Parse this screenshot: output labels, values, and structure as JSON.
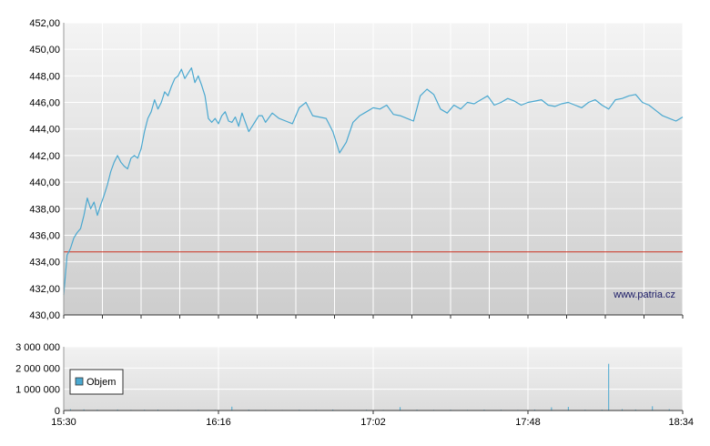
{
  "chart_data": [
    {
      "type": "line",
      "title": "",
      "xlabel": "",
      "ylabel": "",
      "ylim": [
        430,
        452
      ],
      "y_ticks": [
        "452,00",
        "450,00",
        "448,00",
        "446,00",
        "444,00",
        "442,00",
        "440,00",
        "438,00",
        "436,00",
        "434,00",
        "432,00",
        "430,00"
      ],
      "y_tick_values": [
        452,
        450,
        448,
        446,
        444,
        442,
        440,
        438,
        436,
        434,
        432,
        430
      ],
      "x_ticks": [
        "15:30",
        "16:16",
        "17:02",
        "17:48",
        "18:34"
      ],
      "x_range_minutes": [
        0,
        184
      ],
      "grid": true,
      "reference_line": {
        "value": 434.75,
        "color": "#cc3322"
      },
      "series": [
        {
          "color": "#4aa8d0",
          "x": [
            0,
            1,
            2,
            3,
            4,
            5,
            6,
            7,
            8,
            9,
            10,
            11,
            12,
            13,
            14,
            15,
            16,
            17,
            18,
            19,
            20,
            21,
            22,
            23,
            24,
            25,
            26,
            27,
            28,
            29,
            30,
            31,
            32,
            33,
            34,
            35,
            36,
            37,
            38,
            39,
            40,
            41,
            42,
            43,
            44,
            45,
            46,
            47,
            48,
            49,
            50,
            51,
            52,
            53,
            54,
            55,
            56,
            57,
            58,
            59,
            60,
            62,
            64,
            66,
            68,
            70,
            72,
            74,
            76,
            78,
            80,
            82,
            84,
            86,
            88,
            90,
            92,
            94,
            96,
            98,
            100,
            102,
            104,
            106,
            108,
            110,
            112,
            114,
            116,
            118,
            120,
            122,
            124,
            126,
            128,
            130,
            132,
            134,
            136,
            138,
            140,
            142,
            144,
            146,
            148,
            150,
            152,
            154,
            156,
            158,
            160,
            162,
            164,
            166,
            168,
            170,
            172,
            174,
            176,
            178,
            180,
            182,
            184
          ],
          "values": [
            431.5,
            434.5,
            435.0,
            435.8,
            436.2,
            436.5,
            437.5,
            438.8,
            438.0,
            438.5,
            437.5,
            438.3,
            439.0,
            439.8,
            440.8,
            441.5,
            442.0,
            441.5,
            441.2,
            441.0,
            441.8,
            442.0,
            441.8,
            442.5,
            443.8,
            444.8,
            445.3,
            446.2,
            445.5,
            446.0,
            446.8,
            446.5,
            447.2,
            447.8,
            448.0,
            448.5,
            447.8,
            448.2,
            448.6,
            447.5,
            448.0,
            447.3,
            446.5,
            444.8,
            444.5,
            444.8,
            444.4,
            445.0,
            445.3,
            444.6,
            444.5,
            444.9,
            444.2,
            445.2,
            444.5,
            443.8,
            444.2,
            444.6,
            445.0,
            445.0,
            444.5,
            445.2,
            444.8,
            444.6,
            444.4,
            445.6,
            446.0,
            445.0,
            444.9,
            444.8,
            443.8,
            442.2,
            443.0,
            444.5,
            445.0,
            445.3,
            445.6,
            445.5,
            445.8,
            445.1,
            445.0,
            444.8,
            444.6,
            446.5,
            447.0,
            446.6,
            445.5,
            445.2,
            445.8,
            445.5,
            446.0,
            445.9,
            446.2,
            446.5,
            445.8,
            446.0,
            446.3,
            446.1,
            445.8,
            446.0,
            446.1,
            446.2,
            445.8,
            445.7,
            445.9,
            446.0,
            445.8,
            445.6,
            446.0,
            446.2,
            445.8,
            445.5,
            446.2,
            446.3,
            446.5,
            446.6,
            446.0,
            445.8,
            445.4,
            445.0,
            444.8,
            444.6,
            444.9
          ]
        }
      ],
      "watermark": "www.patria.cz"
    },
    {
      "type": "bar",
      "title": "",
      "xlabel": "",
      "ylabel": "",
      "ylim": [
        0,
        3000000
      ],
      "y_ticks": [
        "3 000 000",
        "2 000 000",
        "1 000 000",
        "0"
      ],
      "y_tick_values": [
        3000000,
        2000000,
        1000000,
        0
      ],
      "x_ticks": [
        "15:30",
        "16:16",
        "17:02",
        "17:48",
        "18:34"
      ],
      "x_range_minutes": [
        0,
        184
      ],
      "grid": true,
      "legend": {
        "position": "bottom-left",
        "entries": [
          "Objem"
        ]
      },
      "series": [
        {
          "name": "Objem",
          "color": "#4aa8d0",
          "x": [
            2,
            6,
            10,
            16,
            20,
            24,
            28,
            34,
            40,
            45,
            50,
            55,
            60,
            65,
            70,
            75,
            80,
            85,
            90,
            95,
            100,
            105,
            110,
            115,
            120,
            125,
            130,
            135,
            140,
            145,
            150,
            155,
            160,
            162,
            166,
            170,
            175,
            180
          ],
          "values": [
            60000,
            50000,
            40000,
            45000,
            30000,
            35000,
            40000,
            30000,
            35000,
            30000,
            180000,
            40000,
            30000,
            25000,
            35000,
            30000,
            45000,
            25000,
            35000,
            30000,
            160000,
            40000,
            30000,
            35000,
            30000,
            40000,
            35000,
            30000,
            45000,
            150000,
            170000,
            35000,
            40000,
            2200000,
            60000,
            45000,
            200000,
            60000
          ]
        }
      ]
    }
  ]
}
